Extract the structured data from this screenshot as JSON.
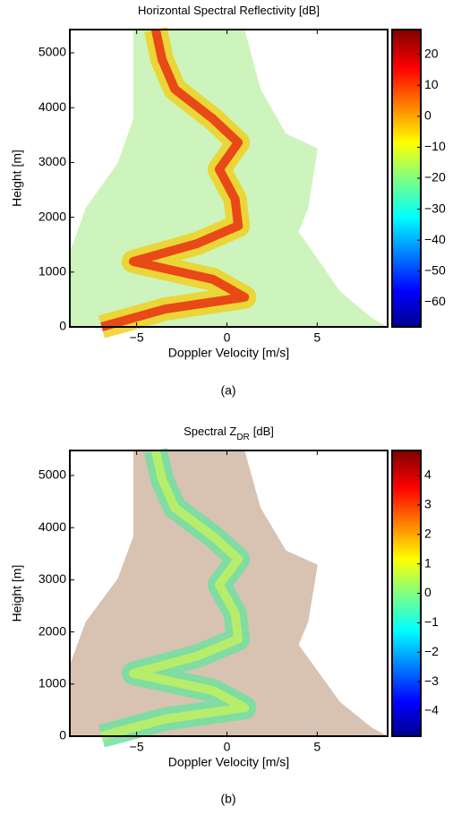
{
  "chart_data": [
    {
      "type": "heatmap",
      "title_parts": [
        "Horizontal Spectral Reflectivity [dB]"
      ],
      "xlabel": "Doppler Velocity [m/s]",
      "ylabel": "Height [m]",
      "caption": "(a)",
      "xlim": [
        -8.7,
        8.9
      ],
      "xticks": [
        {
          "value": -5,
          "label": "−5"
        },
        0,
        5
      ],
      "ylim": [
        0,
        5425
      ],
      "yticks": [
        0,
        1000,
        2000,
        3000,
        4000,
        5000
      ],
      "clim": [
        -68,
        28
      ],
      "cticks": [
        {
          "value": -60,
          "label": "−60"
        },
        {
          "value": -50,
          "label": "−50"
        },
        {
          "value": -40,
          "label": "−40"
        },
        {
          "value": -30,
          "label": "−30"
        },
        {
          "value": -20,
          "label": "−20"
        },
        {
          "value": -10,
          "label": "−10"
        },
        0,
        10,
        20
      ]
    },
    {
      "type": "heatmap",
      "title_parts": [
        "Spectral Z",
        "DR",
        "[dB]"
      ],
      "xlabel": "Doppler Velocity [m/s]",
      "ylabel": "Height [m]",
      "caption": "(b)",
      "xlim": [
        -8.7,
        8.9
      ],
      "xticks": [
        {
          "value": -5,
          "label": "−5"
        },
        0,
        5
      ],
      "ylim": [
        0,
        5480
      ],
      "yticks": [
        0,
        1000,
        2000,
        3000,
        4000,
        5000
      ],
      "clim": [
        -4.85,
        4.85
      ],
      "cticks": [
        {
          "value": -4,
          "label": "−4"
        },
        {
          "value": -3,
          "label": "−3"
        },
        {
          "value": -2,
          "label": "−2"
        },
        {
          "value": -1,
          "label": "−1"
        },
        0,
        1,
        2,
        3,
        4
      ]
    }
  ]
}
